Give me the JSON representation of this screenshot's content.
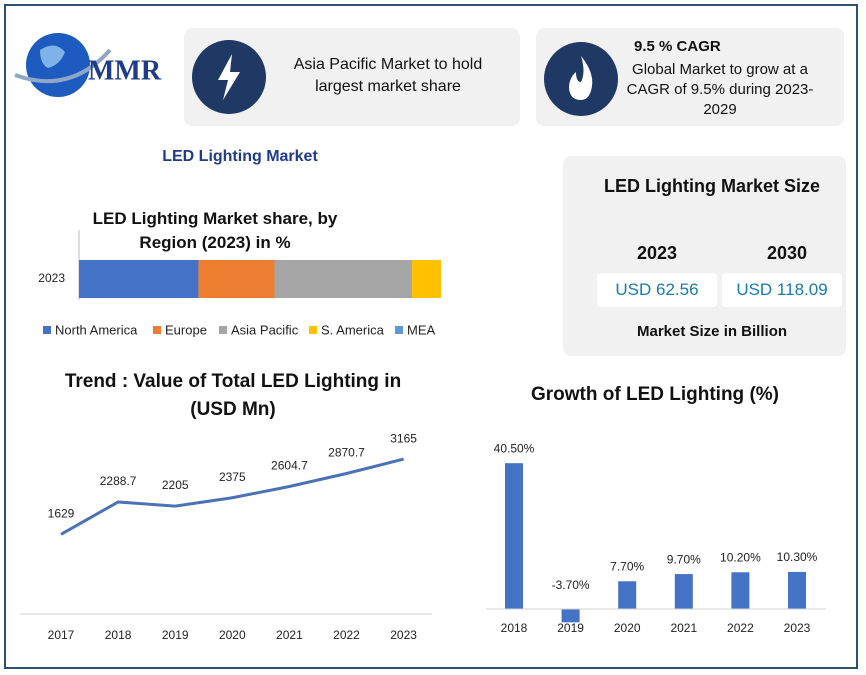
{
  "logo": {
    "text": "MMR"
  },
  "highlights": [
    {
      "text": "Asia Pacific Market to hold largest market share"
    },
    {
      "title": "9.5 % CAGR",
      "text": "Global Market to grow at a CAGR of 9.5% during 2023-2029"
    }
  ],
  "section_title": "LED Lighting Market",
  "market_size": {
    "title": "LED Lighting Market Size",
    "columns": [
      {
        "year": "2023",
        "value": "USD 62.56"
      },
      {
        "year": "2030",
        "value": "USD 118.09"
      }
    ],
    "note": "Market Size in Billion"
  },
  "chart_data": [
    {
      "type": "stacked-hbar",
      "title": "LED Lighting Market share, by Region (2023) in %",
      "categories": [
        "2023"
      ],
      "xlim": [
        0,
        100
      ],
      "series": [
        {
          "name": "North America",
          "color": "#4472c4",
          "values": [
            33
          ]
        },
        {
          "name": "Europe",
          "color": "#ed7d31",
          "values": [
            21
          ]
        },
        {
          "name": "Asia Pacific",
          "color": "#a5a5a5",
          "values": [
            38
          ]
        },
        {
          "name": "S. America",
          "color": "#ffc000",
          "values": [
            8
          ]
        },
        {
          "name": "MEA",
          "color": "#5b9bd5",
          "values": [
            0
          ]
        }
      ]
    },
    {
      "type": "line",
      "title": "Trend : Value of Total LED Lighting in (USD Mn)",
      "categories": [
        "2017",
        "2018",
        "2019",
        "2020",
        "2021",
        "2022",
        "2023"
      ],
      "values": [
        1629,
        2288.7,
        2205,
        2375,
        2604.7,
        2870.7,
        3165
      ],
      "color": "#4a72b5",
      "ylim": [
        0,
        3800
      ]
    },
    {
      "type": "bar",
      "title": "Growth of LED Lighting (%)",
      "categories": [
        "2018",
        "2019",
        "2020",
        "2021",
        "2022",
        "2023"
      ],
      "values": [
        40.5,
        -3.7,
        7.7,
        9.7,
        10.2,
        10.3
      ],
      "value_labels": [
        "40.50%",
        "-3.70%",
        "7.70%",
        "9.70%",
        "10.20%",
        "10.30%"
      ],
      "color": "#4472c4",
      "ylim": [
        -5,
        45
      ]
    }
  ]
}
